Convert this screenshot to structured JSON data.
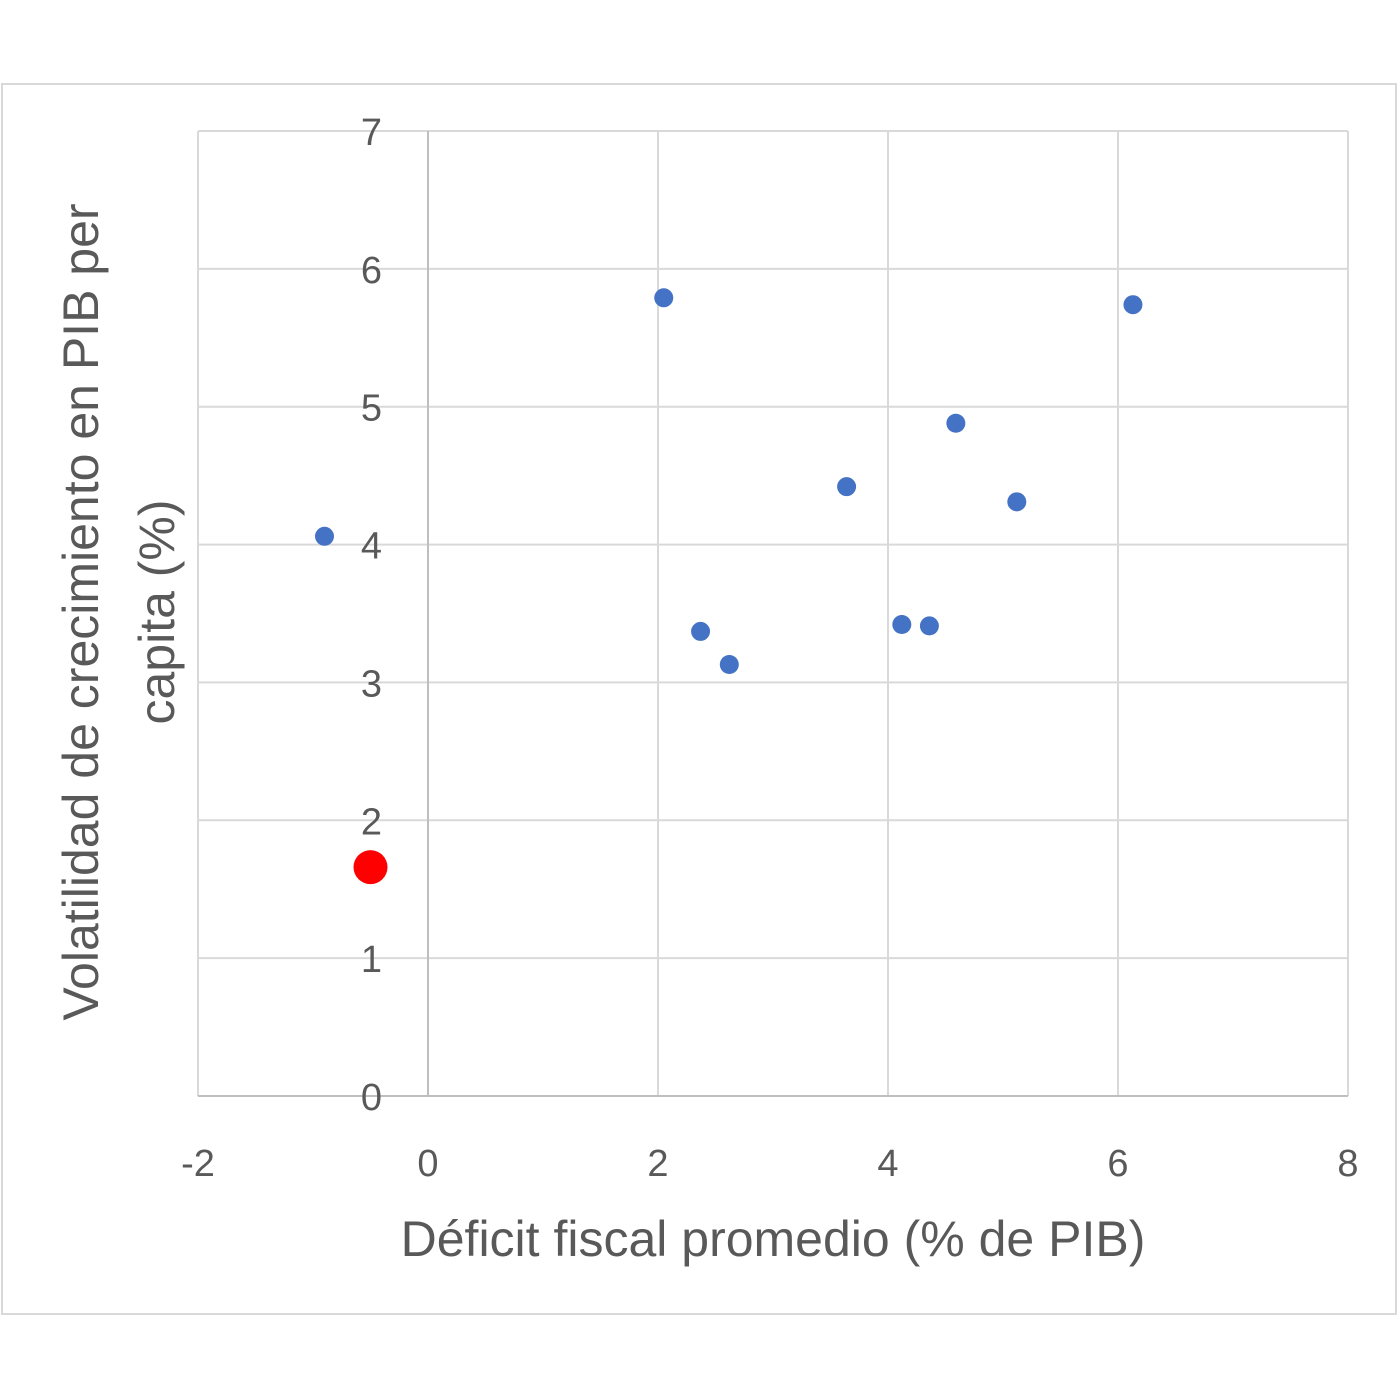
{
  "chart_data": {
    "type": "scatter",
    "xlabel": "Déficit fiscal promedio (% de PIB)",
    "ylabel_lines": [
      "Volatilidad de crecimiento en PIB per",
      "capita (%)"
    ],
    "xlim": [
      -2,
      8
    ],
    "ylim": [
      0,
      7
    ],
    "x_ticks": [
      -2,
      0,
      2,
      4,
      6,
      8
    ],
    "y_ticks": [
      0,
      1,
      2,
      3,
      4,
      5,
      6,
      7
    ],
    "grid": true,
    "legend": "none",
    "series": [
      {
        "color": "#4472c4",
        "points": [
          {
            "x": -0.9,
            "y": 4.06
          },
          {
            "x": 2.05,
            "y": 5.79
          },
          {
            "x": 2.37,
            "y": 3.37
          },
          {
            "x": 2.62,
            "y": 3.13
          },
          {
            "x": 3.64,
            "y": 4.42
          },
          {
            "x": 4.12,
            "y": 3.42
          },
          {
            "x": 4.36,
            "y": 3.41
          },
          {
            "x": 4.59,
            "y": 4.88
          },
          {
            "x": 5.12,
            "y": 4.31
          },
          {
            "x": 6.13,
            "y": 5.74
          }
        ]
      },
      {
        "color": "#ff0000",
        "highlight": true,
        "points": [
          {
            "x": -0.5,
            "y": 1.66
          }
        ]
      }
    ]
  }
}
